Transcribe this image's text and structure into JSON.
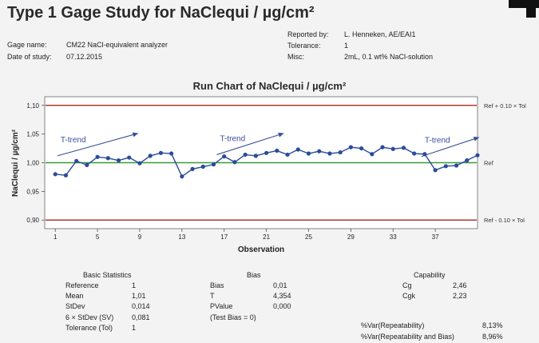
{
  "title": "Type 1 Gage Study for NaClequi / µg/cm²",
  "header": {
    "gage_name_label": "Gage name:",
    "gage_name": "CM22 NaCl-equivalent analyzer",
    "date_label": "Date of study:",
    "date": "07.12.2015",
    "reported_by_label": "Reported by:",
    "reported_by": "L. Henneken, AE/EAI1",
    "tolerance_label": "Tolerance:",
    "tolerance": "1",
    "misc_label": "Misc:",
    "misc": "2mL, 0.1 wt% NaCl-solution"
  },
  "colors": {
    "limit_line": "#b03a2e",
    "ref_line": "#3a9a3a",
    "series": "#2a4b9b",
    "trend_arrow": "#3a4f9a"
  },
  "chart_data": {
    "type": "line",
    "title": "Run Chart of NaClequi / µg/cm²",
    "xlabel": "Observation",
    "ylabel": "NaClequi / µg/cm²",
    "xlim": [
      0,
      41
    ],
    "ylim": [
      0.885,
      1.115
    ],
    "x_ticks": [
      1,
      5,
      9,
      13,
      17,
      21,
      25,
      29,
      33,
      37
    ],
    "y_ticks": [
      {
        "value": 0.9,
        "label": "0,90"
      },
      {
        "value": 0.95,
        "label": "0,95"
      },
      {
        "value": 1.0,
        "label": "1,00"
      },
      {
        "value": 1.05,
        "label": "1,05"
      },
      {
        "value": 1.1,
        "label": "1,10"
      }
    ],
    "reference_lines": [
      {
        "value": 1.1,
        "label": "Ref + 0.10 × Tol",
        "kind": "limit"
      },
      {
        "value": 1.0,
        "label": "Ref",
        "kind": "ref"
      },
      {
        "value": 0.9,
        "label": "Ref - 0.10 × Tol",
        "kind": "limit"
      }
    ],
    "series": [
      {
        "values": [
          0.98,
          0.978,
          1.003,
          0.996,
          1.01,
          1.008,
          1.004,
          1.009,
          0.999,
          1.012,
          1.017,
          1.016,
          0.976,
          0.989,
          0.993,
          0.997,
          1.011,
          1.001,
          1.014,
          1.012,
          1.017,
          1.021,
          1.014,
          1.023,
          1.016,
          1.02,
          1.016,
          1.018,
          1.027,
          1.025,
          1.015,
          1.027,
          1.024,
          1.026,
          1.016,
          1.015,
          0.987,
          0.994,
          0.995,
          1.004,
          1.013
        ]
      }
    ],
    "annotations": [
      {
        "text": "T-trend",
        "x_start": 1.2,
        "y_start": 1.012,
        "x_end": 8.8,
        "y_end": 1.051
      },
      {
        "text": "T-trend",
        "x_start": 16.3,
        "y_start": 1.014,
        "x_end": 22.6,
        "y_end": 1.051
      },
      {
        "text": "T-trend",
        "x_start": 35.7,
        "y_start": 1.011,
        "x_end": 41.1,
        "y_end": 1.044
      }
    ],
    "legend": "none",
    "grid": false
  },
  "stats": {
    "basic": {
      "title": "Basic Statistics",
      "rows": [
        {
          "label": "Reference",
          "value": "1"
        },
        {
          "label": "Mean",
          "value": "1,01"
        },
        {
          "label": "StDev",
          "value": "0,014"
        },
        {
          "label": "6 × StDev (SV)",
          "value": "0,081"
        },
        {
          "label": "Tolerance (Tol)",
          "value": "1"
        }
      ]
    },
    "bias": {
      "title": "Bias",
      "rows": [
        {
          "label": "Bias",
          "value": "0,01"
        },
        {
          "label": "T",
          "value": "4,354"
        },
        {
          "label": "PValue",
          "value": "0,000"
        },
        {
          "label": "(Test Bias = 0)",
          "value": ""
        }
      ]
    },
    "capability": {
      "title": "Capability",
      "rows": [
        {
          "label": "Cg",
          "value": "2,46"
        },
        {
          "label": "Cgk",
          "value": "2,23"
        }
      ]
    },
    "var": {
      "rows": [
        {
          "label": "%Var(Repeatability)",
          "value": "8,13%"
        },
        {
          "label": "%Var(Repeatability and Bias)",
          "value": "8,96%"
        }
      ]
    }
  }
}
